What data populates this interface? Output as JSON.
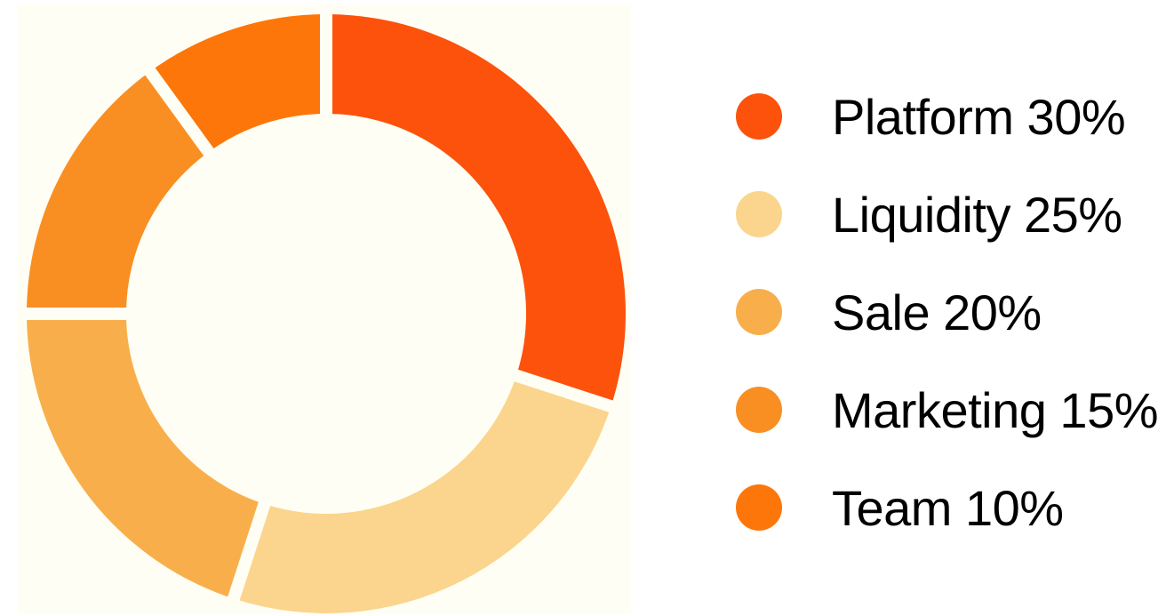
{
  "chart_data": {
    "type": "pie",
    "variant": "donut",
    "title": "",
    "legend_position": "right",
    "background_color": "#fffef4",
    "slices": [
      {
        "label": "Platform 30%",
        "value": 30,
        "color": "#fc520b"
      },
      {
        "label": "Liquidity 25%",
        "value": 25,
        "color": "#fbd58d"
      },
      {
        "label": "Sale 20%",
        "value": 20,
        "color": "#f8af4b"
      },
      {
        "label": "Marketing 15%",
        "value": 15,
        "color": "#f98f23"
      },
      {
        "label": "Team 10%",
        "value": 10,
        "color": "#fd7609"
      }
    ]
  }
}
